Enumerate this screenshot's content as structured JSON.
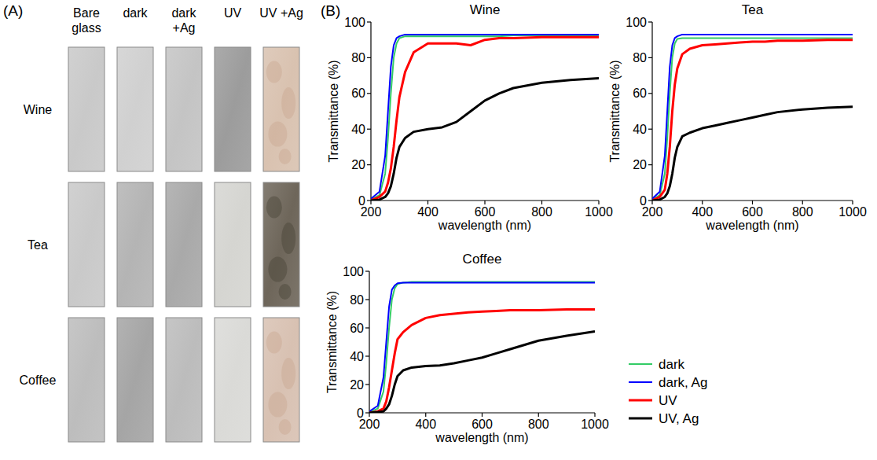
{
  "panel_a": {
    "label": "(A)",
    "columns": [
      "Bare glass",
      "dark",
      "dark +Ag",
      "UV",
      "UV +Ag"
    ],
    "rows": [
      "Wine",
      "Tea",
      "Coffee"
    ]
  },
  "panel_b": {
    "label": "(B)"
  },
  "chart_data": [
    {
      "type": "line",
      "title": "Wine",
      "x_label": "wavelength (nm)",
      "y_label": "Transmittance (%)",
      "x": [
        200,
        230,
        250,
        260,
        270,
        280,
        290,
        300,
        320,
        350,
        400,
        450,
        500,
        550,
        600,
        650,
        700,
        800,
        900,
        1000
      ],
      "series": [
        {
          "name": "dark",
          "color": "#33cc66",
          "values": [
            0.5,
            3,
            15,
            35,
            60,
            80,
            88,
            91,
            92,
            92,
            92,
            92,
            92,
            92,
            92,
            92,
            92.5,
            92.5,
            92.5,
            92.5
          ]
        },
        {
          "name": "dark, Ag",
          "color": "#0000ff",
          "values": [
            1,
            5,
            25,
            50,
            75,
            87,
            91,
            92,
            93,
            93,
            93,
            93,
            93,
            93,
            93,
            93,
            93,
            93,
            93,
            93
          ]
        },
        {
          "name": "UV",
          "color": "#ff0000",
          "values": [
            0,
            2,
            5,
            10,
            18,
            30,
            45,
            58,
            72,
            83,
            88,
            88,
            88,
            87,
            90,
            91,
            91,
            91.5,
            91.5,
            91.5
          ]
        },
        {
          "name": "UV, Ag",
          "color": "#000000",
          "values": [
            0,
            0.5,
            2,
            4,
            8,
            15,
            24,
            30,
            35,
            38.5,
            40,
            41,
            44,
            50,
            56,
            60,
            63,
            66,
            67.5,
            68.5
          ]
        }
      ],
      "xlim": [
        200,
        1000
      ],
      "ylim": [
        0,
        100
      ],
      "xticks": [
        200,
        400,
        600,
        800,
        1000
      ],
      "yticks": [
        0,
        20,
        40,
        60,
        80,
        100
      ]
    },
    {
      "type": "line",
      "title": "Tea",
      "x_label": "wavelength (nm)",
      "y_label": "Transmittance (%)",
      "x": [
        200,
        230,
        250,
        260,
        270,
        280,
        290,
        300,
        320,
        350,
        400,
        450,
        500,
        550,
        600,
        650,
        700,
        800,
        900,
        1000
      ],
      "series": [
        {
          "name": "dark",
          "color": "#33cc66",
          "values": [
            0.5,
            3,
            15,
            35,
            60,
            80,
            88,
            90.5,
            91,
            91,
            91,
            91,
            91,
            91,
            91,
            91,
            91,
            91,
            91,
            91
          ]
        },
        {
          "name": "dark, Ag",
          "color": "#0000ff",
          "values": [
            1,
            5,
            25,
            50,
            75,
            87,
            91,
            92,
            93,
            93,
            93,
            93,
            93,
            93,
            93,
            93,
            93,
            93,
            93,
            93
          ]
        },
        {
          "name": "UV",
          "color": "#ff0000",
          "values": [
            0,
            2,
            6,
            15,
            30,
            50,
            65,
            74,
            82,
            85,
            87,
            87.5,
            88,
            88.5,
            89,
            89,
            89.5,
            89.5,
            90,
            90
          ]
        },
        {
          "name": "UV, Ag",
          "color": "#000000",
          "values": [
            0,
            0.5,
            2,
            4,
            8,
            15,
            24,
            30,
            36,
            38,
            40.5,
            42,
            43.5,
            45,
            46.5,
            48,
            49.5,
            51,
            52,
            52.5
          ]
        }
      ],
      "xlim": [
        200,
        1000
      ],
      "ylim": [
        0,
        100
      ],
      "xticks": [
        200,
        400,
        600,
        800,
        1000
      ],
      "yticks": [
        0,
        20,
        40,
        60,
        80,
        100
      ]
    },
    {
      "type": "line",
      "title": "Coffee",
      "x_label": "wavelength (nm)",
      "y_label": "Transmittance (%)",
      "x": [
        200,
        230,
        250,
        260,
        270,
        280,
        290,
        300,
        320,
        350,
        400,
        450,
        500,
        550,
        600,
        650,
        700,
        800,
        900,
        1000
      ],
      "series": [
        {
          "name": "dark",
          "color": "#33cc66",
          "values": [
            0.5,
            3,
            15,
            35,
            60,
            80,
            88,
            91,
            92,
            92.5,
            92.5,
            92.5,
            92.5,
            92.5,
            92.5,
            92.5,
            92.5,
            92.5,
            92.5,
            92.5
          ]
        },
        {
          "name": "dark, Ag",
          "color": "#0000ff",
          "values": [
            1,
            5,
            25,
            50,
            75,
            87,
            90,
            91.5,
            92,
            92,
            92,
            92,
            92,
            92,
            92,
            92,
            92,
            92,
            92,
            92
          ]
        },
        {
          "name": "UV",
          "color": "#ff0000",
          "values": [
            0,
            1,
            3,
            8,
            18,
            30,
            42,
            52,
            57,
            62,
            67,
            69,
            70,
            71,
            71.5,
            72,
            72.5,
            72.5,
            73,
            73
          ]
        },
        {
          "name": "UV, Ag",
          "color": "#000000",
          "values": [
            0,
            0.5,
            1,
            3,
            6,
            12,
            20,
            26,
            30,
            32,
            33,
            33.5,
            35,
            37,
            39,
            42,
            45,
            51,
            54.5,
            57.5
          ]
        }
      ],
      "xlim": [
        200,
        1000
      ],
      "ylim": [
        0,
        100
      ],
      "xticks": [
        200,
        400,
        600,
        800,
        1000
      ],
      "yticks": [
        0,
        20,
        40,
        60,
        80,
        100
      ],
      "legend": "right"
    }
  ]
}
